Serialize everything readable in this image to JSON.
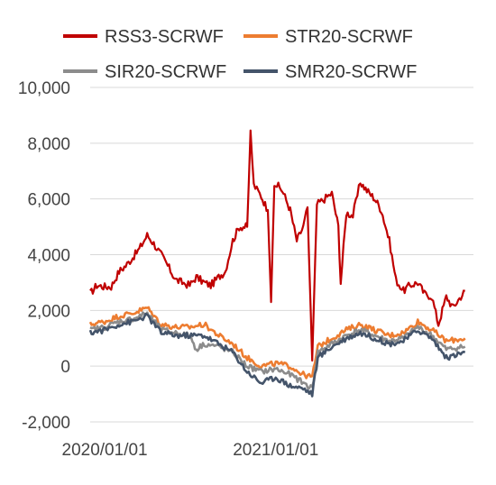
{
  "chart_data": {
    "type": "line",
    "title": "",
    "xlabel": "",
    "ylabel": "",
    "ylim": [
      -2000,
      10000
    ],
    "yticks": [
      -2000,
      0,
      2000,
      4000,
      6000,
      8000,
      10000
    ],
    "ytick_labels": [
      "-2,000",
      "0",
      "2,000",
      "4,000",
      "6,000",
      "8,000",
      "10,000"
    ],
    "x_range": [
      "2019-12-01",
      "2022-02-28"
    ],
    "xticks": [
      "2020-01-01",
      "2021-01-01"
    ],
    "xtick_labels": [
      "2020/01/01",
      "2021/01/01"
    ],
    "grid": "horizontal",
    "legend_position": "top",
    "series": [
      {
        "name": "RSS3-SCRWF",
        "color": "#c00000",
        "points": [
          [
            "2019-12-01",
            2600
          ],
          [
            "2019-12-15",
            2900
          ],
          [
            "2020-01-01",
            2850
          ],
          [
            "2020-01-15",
            2850
          ],
          [
            "2020-02-01",
            3400
          ],
          [
            "2020-02-15",
            3600
          ],
          [
            "2020-03-01",
            3900
          ],
          [
            "2020-03-15",
            4200
          ],
          [
            "2020-04-01",
            4700
          ],
          [
            "2020-04-15",
            4400
          ],
          [
            "2020-05-01",
            4000
          ],
          [
            "2020-05-15",
            3600
          ],
          [
            "2020-06-01",
            3100
          ],
          [
            "2020-06-15",
            3000
          ],
          [
            "2020-07-01",
            2900
          ],
          [
            "2020-07-15",
            3200
          ],
          [
            "2020-08-01",
            3000
          ],
          [
            "2020-08-15",
            2900
          ],
          [
            "2020-09-01",
            3200
          ],
          [
            "2020-09-15",
            3400
          ],
          [
            "2020-10-01",
            4500
          ],
          [
            "2020-10-15",
            5000
          ],
          [
            "2020-11-01",
            5000
          ],
          [
            "2020-11-08",
            8400
          ],
          [
            "2020-11-15",
            6500
          ],
          [
            "2020-12-01",
            6100
          ],
          [
            "2020-12-15",
            5600
          ],
          [
            "2020-12-22",
            2300
          ],
          [
            "2020-12-29",
            6600
          ],
          [
            "2021-01-15",
            6300
          ],
          [
            "2021-02-01",
            5600
          ],
          [
            "2021-02-15",
            4500
          ],
          [
            "2021-03-01",
            5000
          ],
          [
            "2021-03-10",
            5700
          ],
          [
            "2021-03-20",
            200
          ],
          [
            "2021-03-30",
            5800
          ],
          [
            "2021-04-15",
            6000
          ],
          [
            "2021-05-01",
            6200
          ],
          [
            "2021-05-15",
            5000
          ],
          [
            "2021-05-20",
            3000
          ],
          [
            "2021-06-01",
            5500
          ],
          [
            "2021-06-15",
            5400
          ],
          [
            "2021-07-01",
            6600
          ],
          [
            "2021-07-15",
            6300
          ],
          [
            "2021-08-01",
            6000
          ],
          [
            "2021-08-15",
            5600
          ],
          [
            "2021-09-01",
            4500
          ],
          [
            "2021-09-15",
            3100
          ],
          [
            "2021-10-01",
            2700
          ],
          [
            "2021-10-15",
            2900
          ],
          [
            "2021-11-01",
            3000
          ],
          [
            "2021-11-15",
            2600
          ],
          [
            "2021-12-01",
            2500
          ],
          [
            "2021-12-15",
            1500
          ],
          [
            "2022-01-01",
            2500
          ],
          [
            "2022-01-15",
            2100
          ],
          [
            "2022-02-01",
            2500
          ],
          [
            "2022-02-10",
            2700
          ]
        ]
      },
      {
        "name": "STR20-SCRWF",
        "color": "#ed7d31",
        "points": [
          [
            "2019-12-01",
            1500
          ],
          [
            "2020-01-01",
            1600
          ],
          [
            "2020-02-01",
            1800
          ],
          [
            "2020-03-01",
            1900
          ],
          [
            "2020-04-01",
            2100
          ],
          [
            "2020-05-01",
            1500
          ],
          [
            "2020-06-01",
            1400
          ],
          [
            "2020-07-01",
            1400
          ],
          [
            "2020-08-01",
            1500
          ],
          [
            "2020-09-01",
            1100
          ],
          [
            "2020-10-01",
            800
          ],
          [
            "2020-11-01",
            300
          ],
          [
            "2020-12-01",
            0
          ],
          [
            "2021-01-01",
            100
          ],
          [
            "2021-02-01",
            0
          ],
          [
            "2021-03-01",
            -300
          ],
          [
            "2021-03-20",
            -400
          ],
          [
            "2021-04-01",
            700
          ],
          [
            "2021-05-01",
            1000
          ],
          [
            "2021-06-01",
            1300
          ],
          [
            "2021-07-01",
            1500
          ],
          [
            "2021-08-01",
            1300
          ],
          [
            "2021-09-01",
            1100
          ],
          [
            "2021-10-01",
            1200
          ],
          [
            "2021-11-01",
            1600
          ],
          [
            "2021-12-01",
            1300
          ],
          [
            "2022-01-01",
            900
          ],
          [
            "2022-02-10",
            1000
          ]
        ]
      },
      {
        "name": "SIR20-SCRWF",
        "color": "#8c8c8c",
        "points": [
          [
            "2019-12-01",
            1300
          ],
          [
            "2020-01-01",
            1400
          ],
          [
            "2020-02-01",
            1600
          ],
          [
            "2020-03-01",
            1700
          ],
          [
            "2020-04-01",
            1900
          ],
          [
            "2020-05-01",
            1300
          ],
          [
            "2020-06-01",
            1200
          ],
          [
            "2020-07-01",
            1100
          ],
          [
            "2020-07-15",
            600
          ],
          [
            "2020-08-01",
            800
          ],
          [
            "2020-09-01",
            700
          ],
          [
            "2020-10-01",
            500
          ],
          [
            "2020-11-01",
            0
          ],
          [
            "2020-12-01",
            -200
          ],
          [
            "2021-01-01",
            -100
          ],
          [
            "2021-02-01",
            -300
          ],
          [
            "2021-03-01",
            -600
          ],
          [
            "2021-03-20",
            -800
          ],
          [
            "2021-04-01",
            500
          ],
          [
            "2021-05-01",
            800
          ],
          [
            "2021-06-01",
            1100
          ],
          [
            "2021-07-01",
            1300
          ],
          [
            "2021-08-01",
            1100
          ],
          [
            "2021-09-01",
            900
          ],
          [
            "2021-10-01",
            1000
          ],
          [
            "2021-11-01",
            1400
          ],
          [
            "2021-12-01",
            1100
          ],
          [
            "2022-01-01",
            600
          ],
          [
            "2022-02-10",
            700
          ]
        ]
      },
      {
        "name": "SMR20-SCRWF",
        "color": "#44546a",
        "points": [
          [
            "2019-12-01",
            1200
          ],
          [
            "2020-01-01",
            1300
          ],
          [
            "2020-02-01",
            1500
          ],
          [
            "2020-03-01",
            1600
          ],
          [
            "2020-04-01",
            1800
          ],
          [
            "2020-05-01",
            1200
          ],
          [
            "2020-06-01",
            1100
          ],
          [
            "2020-07-01",
            1100
          ],
          [
            "2020-08-01",
            1100
          ],
          [
            "2020-09-01",
            800
          ],
          [
            "2020-10-01",
            500
          ],
          [
            "2020-11-01",
            -200
          ],
          [
            "2020-12-01",
            -600
          ],
          [
            "2021-01-01",
            -400
          ],
          [
            "2021-02-01",
            -700
          ],
          [
            "2021-03-01",
            -800
          ],
          [
            "2021-03-20",
            -1000
          ],
          [
            "2021-04-01",
            300
          ],
          [
            "2021-05-01",
            700
          ],
          [
            "2021-06-01",
            1000
          ],
          [
            "2021-07-01",
            1200
          ],
          [
            "2021-08-01",
            1000
          ],
          [
            "2021-09-01",
            800
          ],
          [
            "2021-10-01",
            900
          ],
          [
            "2021-11-01",
            1300
          ],
          [
            "2021-12-01",
            1000
          ],
          [
            "2022-01-01",
            300
          ],
          [
            "2022-02-10",
            500
          ]
        ]
      }
    ]
  }
}
